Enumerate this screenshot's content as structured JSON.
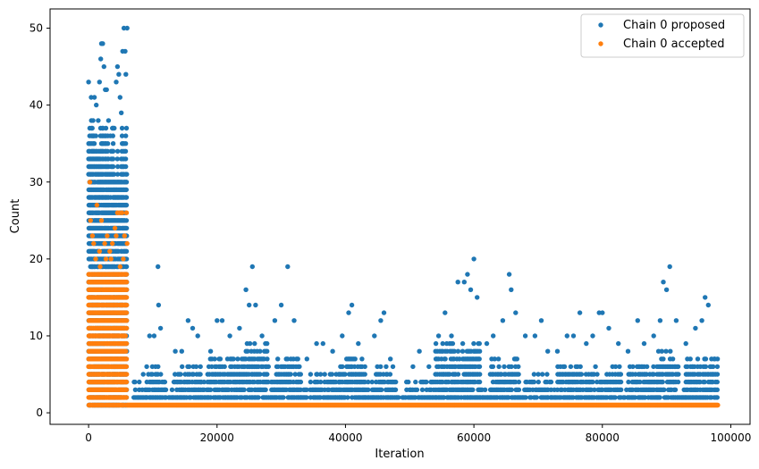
{
  "chart_data": {
    "type": "scatter",
    "title": "",
    "xlabel": "Iteration",
    "ylabel": "Count",
    "xlim": [
      -6000,
      103000
    ],
    "ylim": [
      -1.5,
      52.5
    ],
    "xticks": [
      0,
      20000,
      40000,
      60000,
      80000,
      100000
    ],
    "xtick_labels": [
      "0",
      "20000",
      "40000",
      "60000",
      "80000",
      "100000"
    ],
    "yticks": [
      0,
      10,
      20,
      30,
      40,
      50
    ],
    "ytick_labels": [
      "0",
      "10",
      "20",
      "30",
      "40",
      "50"
    ],
    "legend_position": "top-right",
    "grid": false,
    "series": [
      {
        "name": "Chain 0 proposed",
        "color": "#1f77b4",
        "points": [
          [
            0,
            43
          ],
          [
            400,
            41
          ],
          [
            700,
            38
          ],
          [
            900,
            41
          ],
          [
            1200,
            40
          ],
          [
            1500,
            38
          ],
          [
            1700,
            43
          ],
          [
            1900,
            46
          ],
          [
            2000,
            48
          ],
          [
            2200,
            48
          ],
          [
            2400,
            45
          ],
          [
            2600,
            42
          ],
          [
            2800,
            42
          ],
          [
            3100,
            38
          ],
          [
            3400,
            36
          ],
          [
            3700,
            37
          ],
          [
            4000,
            37
          ],
          [
            4300,
            43
          ],
          [
            4500,
            45
          ],
          [
            4700,
            44
          ],
          [
            4900,
            41
          ],
          [
            5100,
            39
          ],
          [
            5300,
            47
          ],
          [
            5500,
            50
          ],
          [
            5700,
            47
          ],
          [
            5800,
            44
          ],
          [
            6000,
            50
          ],
          [
            5900,
            37
          ],
          [
            8500,
            5
          ],
          [
            9500,
            10
          ],
          [
            10200,
            10
          ],
          [
            10800,
            19
          ],
          [
            10900,
            14
          ],
          [
            11200,
            11
          ],
          [
            13500,
            8
          ],
          [
            14500,
            8
          ],
          [
            15500,
            12
          ],
          [
            16200,
            11
          ],
          [
            17000,
            10
          ],
          [
            19000,
            8
          ],
          [
            20000,
            12
          ],
          [
            20800,
            12
          ],
          [
            22000,
            10
          ],
          [
            23500,
            11
          ],
          [
            24500,
            16
          ],
          [
            25000,
            14
          ],
          [
            25500,
            19
          ],
          [
            26000,
            14
          ],
          [
            27000,
            10
          ],
          [
            29000,
            12
          ],
          [
            30000,
            14
          ],
          [
            31000,
            19
          ],
          [
            32000,
            12
          ],
          [
            34000,
            7
          ],
          [
            35500,
            9
          ],
          [
            36500,
            9
          ],
          [
            38000,
            8
          ],
          [
            39500,
            10
          ],
          [
            40500,
            13
          ],
          [
            41000,
            14
          ],
          [
            42000,
            9
          ],
          [
            44500,
            10
          ],
          [
            45500,
            12
          ],
          [
            46000,
            13
          ],
          [
            47000,
            7
          ],
          [
            49500,
            4
          ],
          [
            50500,
            6
          ],
          [
            51500,
            8
          ],
          [
            53000,
            6
          ],
          [
            54500,
            10
          ],
          [
            55500,
            13
          ],
          [
            56500,
            10
          ],
          [
            57500,
            17
          ],
          [
            58500,
            17
          ],
          [
            59000,
            18
          ],
          [
            59500,
            16
          ],
          [
            60000,
            20
          ],
          [
            60500,
            15
          ],
          [
            62000,
            9
          ],
          [
            63000,
            10
          ],
          [
            64500,
            12
          ],
          [
            65500,
            18
          ],
          [
            65800,
            16
          ],
          [
            66500,
            13
          ],
          [
            68000,
            10
          ],
          [
            69500,
            10
          ],
          [
            70500,
            12
          ],
          [
            71500,
            8
          ],
          [
            73000,
            8
          ],
          [
            74500,
            10
          ],
          [
            75500,
            10
          ],
          [
            76500,
            13
          ],
          [
            77500,
            9
          ],
          [
            78500,
            10
          ],
          [
            79500,
            13
          ],
          [
            80000,
            13
          ],
          [
            81000,
            11
          ],
          [
            82500,
            9
          ],
          [
            84000,
            8
          ],
          [
            85500,
            12
          ],
          [
            86500,
            9
          ],
          [
            88000,
            10
          ],
          [
            89000,
            12
          ],
          [
            89500,
            17
          ],
          [
            90000,
            16
          ],
          [
            90500,
            19
          ],
          [
            91500,
            12
          ],
          [
            93000,
            9
          ],
          [
            94500,
            11
          ],
          [
            95500,
            12
          ],
          [
            96000,
            15
          ],
          [
            96500,
            14
          ],
          [
            97500,
            7
          ]
        ]
      },
      {
        "name": "Chain 0 accepted",
        "color": "#ff7f0e",
        "points": [
          [
            200,
            30
          ],
          [
            300,
            25
          ],
          [
            600,
            23
          ],
          [
            800,
            22
          ],
          [
            1300,
            27
          ],
          [
            1700,
            21
          ],
          [
            2000,
            25
          ],
          [
            2500,
            22
          ],
          [
            2900,
            23
          ],
          [
            3300,
            21
          ],
          [
            3700,
            22
          ],
          [
            4100,
            24
          ],
          [
            4300,
            23
          ],
          [
            4500,
            26
          ],
          [
            4800,
            26
          ],
          [
            5200,
            26
          ],
          [
            5600,
            23
          ],
          [
            5900,
            26
          ],
          [
            6000,
            22
          ],
          [
            1100,
            20
          ],
          [
            1800,
            19
          ],
          [
            2700,
            20
          ],
          [
            3500,
            20
          ],
          [
            4900,
            19
          ],
          [
            5400,
            20
          ]
        ]
      }
    ]
  }
}
